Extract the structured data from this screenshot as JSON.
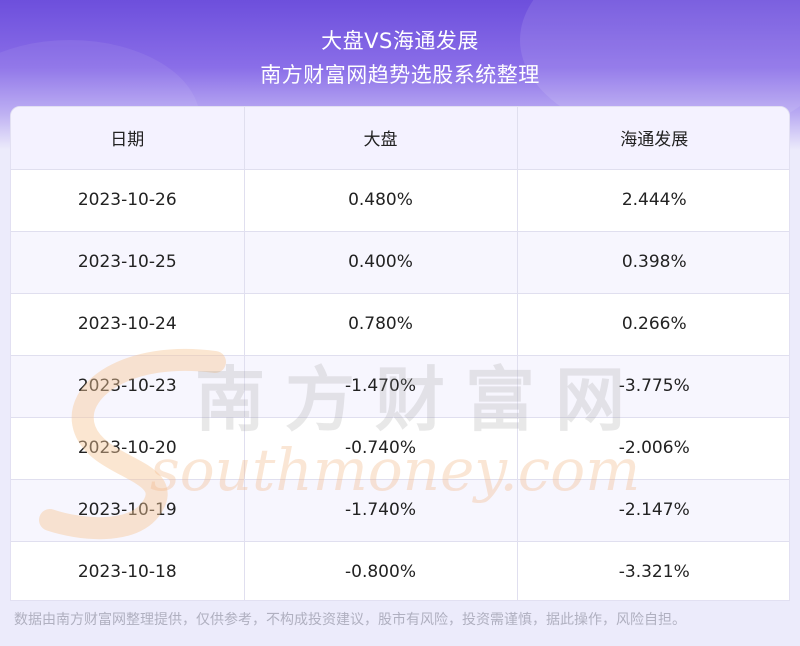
{
  "header": {
    "title": "大盘VS海通发展",
    "subtitle": "南方财富网趋势选股系统整理"
  },
  "table": {
    "columns": [
      "日期",
      "大盘",
      "海通发展"
    ],
    "rows": [
      [
        "2023-10-26",
        "0.480%",
        "2.444%"
      ],
      [
        "2023-10-25",
        "0.400%",
        "0.398%"
      ],
      [
        "2023-10-24",
        "0.780%",
        "0.266%"
      ],
      [
        "2023-10-23",
        "-1.470%",
        "-3.775%"
      ],
      [
        "2023-10-20",
        "-0.740%",
        "-2.006%"
      ],
      [
        "2023-10-19",
        "-1.740%",
        "-2.147%"
      ],
      [
        "2023-10-18",
        "-0.800%",
        "-3.321%"
      ]
    ]
  },
  "watermark": {
    "cn": "南方财富网",
    "en": "southmoney.com"
  },
  "footer": {
    "disclaimer": "数据由南方财富网整理提供，仅供参考，不构成投资建议，股市有风险，投资需谨慎，据此操作，风险自担。"
  }
}
